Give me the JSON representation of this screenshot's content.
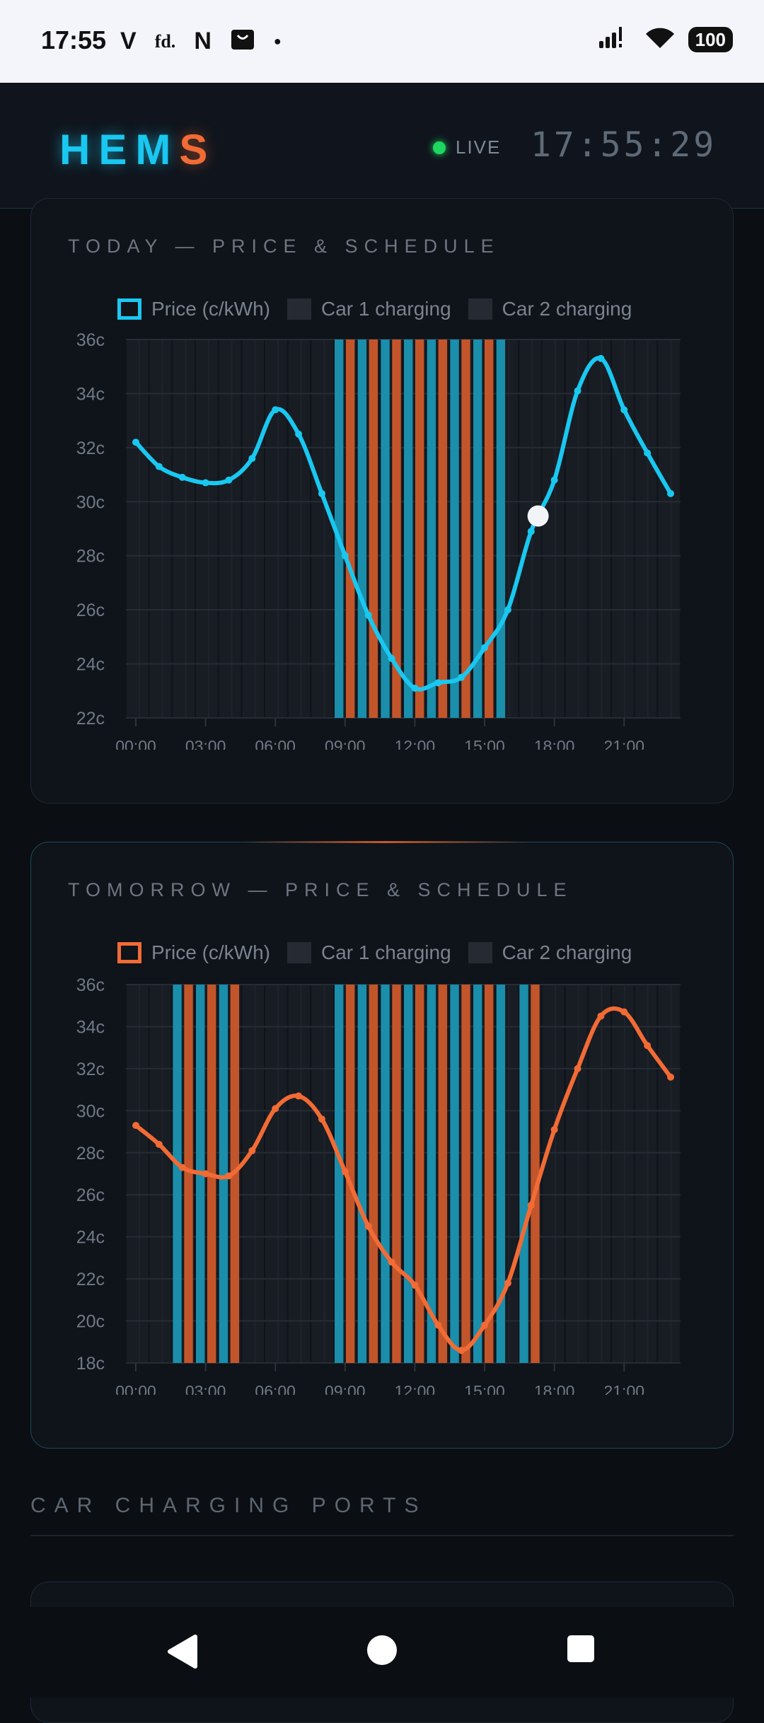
{
  "status_bar": {
    "time": "17:55",
    "left_icons": [
      "V",
      "fd.",
      "N"
    ],
    "battery": "100",
    "icons": [
      "signal-icon",
      "wifi-icon",
      "battery-icon"
    ]
  },
  "header": {
    "logo_main": "HEM",
    "logo_accent": "S",
    "live_label": "LIVE",
    "clock": "17:55:29"
  },
  "colors": {
    "price_today": "#19c8f0",
    "price_tomorrow": "#f26b35",
    "car1": "#1a8eaa",
    "car2": "#c3552b",
    "live": "#1ed760"
  },
  "today": {
    "title": "TODAY — PRICE & SCHEDULE",
    "legend": {
      "price": "Price (c/kWh)",
      "car1": "Car 1 charging",
      "car2": "Car 2 charging"
    }
  },
  "tomorrow": {
    "title": "TOMORROW — PRICE & SCHEDULE",
    "legend": {
      "price": "Price (c/kWh)",
      "car1": "Car 1 charging",
      "car2": "Car 2 charging"
    }
  },
  "section": {
    "title": "CAR CHARGING PORTS"
  },
  "chart_data": [
    {
      "type": "line",
      "title": "TODAY — PRICE & SCHEDULE",
      "series": [
        {
          "name": "Price (c/kWh)",
          "x": [
            0,
            1,
            2,
            3,
            4,
            5,
            6,
            7,
            8,
            9,
            10,
            11,
            12,
            13,
            14,
            15,
            16,
            17,
            18,
            19,
            20,
            21,
            22,
            23
          ],
          "values": [
            32.2,
            31.3,
            30.9,
            30.7,
            30.8,
            31.6,
            33.4,
            32.5,
            30.3,
            28.0,
            25.8,
            24.2,
            23.1,
            23.3,
            23.5,
            24.6,
            26.0,
            28.9,
            30.8,
            34.1,
            35.3,
            33.4,
            31.8,
            30.3
          ]
        },
        {
          "name": "Car 1 charging",
          "slots": [
            [
              9,
              10
            ],
            [
              10,
              11
            ],
            [
              11,
              12
            ],
            [
              12,
              13
            ],
            [
              13,
              14
            ],
            [
              14,
              15
            ],
            [
              15,
              16
            ],
            [
              16,
              17
            ]
          ]
        },
        {
          "name": "Car 2 charging",
          "slots": [
            [
              9,
              10
            ],
            [
              10,
              11
            ],
            [
              11,
              12
            ],
            [
              12,
              13
            ],
            [
              13,
              14
            ],
            [
              14,
              15
            ],
            [
              15,
              16
            ]
          ]
        }
      ],
      "categories": [
        "00:00",
        "03:00",
        "06:00",
        "09:00",
        "12:00",
        "15:00",
        "18:00",
        "21:00"
      ],
      "yticks": [
        "22c",
        "24c",
        "26c",
        "28c",
        "30c",
        "32c",
        "34c",
        "36c"
      ],
      "ylim": [
        22,
        36
      ],
      "current_hour": 17.3,
      "legend_position": "top",
      "grid": true
    },
    {
      "type": "line",
      "title": "TOMORROW — PRICE & SCHEDULE",
      "series": [
        {
          "name": "Price (c/kWh)",
          "x": [
            0,
            1,
            2,
            3,
            4,
            5,
            6,
            7,
            8,
            9,
            10,
            11,
            12,
            13,
            14,
            15,
            16,
            17,
            18,
            19,
            20,
            21,
            22,
            23
          ],
          "values": [
            29.3,
            28.4,
            27.3,
            27.0,
            26.9,
            28.1,
            30.1,
            30.7,
            29.6,
            27.1,
            24.5,
            22.8,
            21.7,
            19.8,
            18.6,
            19.8,
            21.8,
            25.5,
            29.1,
            32.0,
            34.5,
            34.7,
            33.1,
            31.6
          ]
        },
        {
          "name": "Car 1 charging",
          "slots": [
            [
              2,
              3
            ],
            [
              3,
              4
            ],
            [
              4,
              5
            ],
            [
              9,
              10
            ],
            [
              10,
              11
            ],
            [
              11,
              12
            ],
            [
              12,
              13
            ],
            [
              13,
              14
            ],
            [
              14,
              15
            ],
            [
              15,
              16
            ],
            [
              16,
              17
            ],
            [
              17,
              18
            ]
          ]
        },
        {
          "name": "Car 2 charging",
          "slots": [
            [
              2,
              3
            ],
            [
              3,
              4
            ],
            [
              4,
              5
            ],
            [
              9,
              10
            ],
            [
              10,
              11
            ],
            [
              11,
              12
            ],
            [
              12,
              13
            ],
            [
              13,
              14
            ],
            [
              14,
              15
            ],
            [
              15,
              16
            ],
            [
              17,
              18
            ]
          ]
        }
      ],
      "categories": [
        "00:00",
        "03:00",
        "06:00",
        "09:00",
        "12:00",
        "15:00",
        "18:00",
        "21:00"
      ],
      "yticks": [
        "18c",
        "20c",
        "22c",
        "24c",
        "26c",
        "28c",
        "30c",
        "32c",
        "34c",
        "36c"
      ],
      "ylim": [
        18,
        36
      ],
      "legend_position": "top",
      "grid": true
    }
  ]
}
